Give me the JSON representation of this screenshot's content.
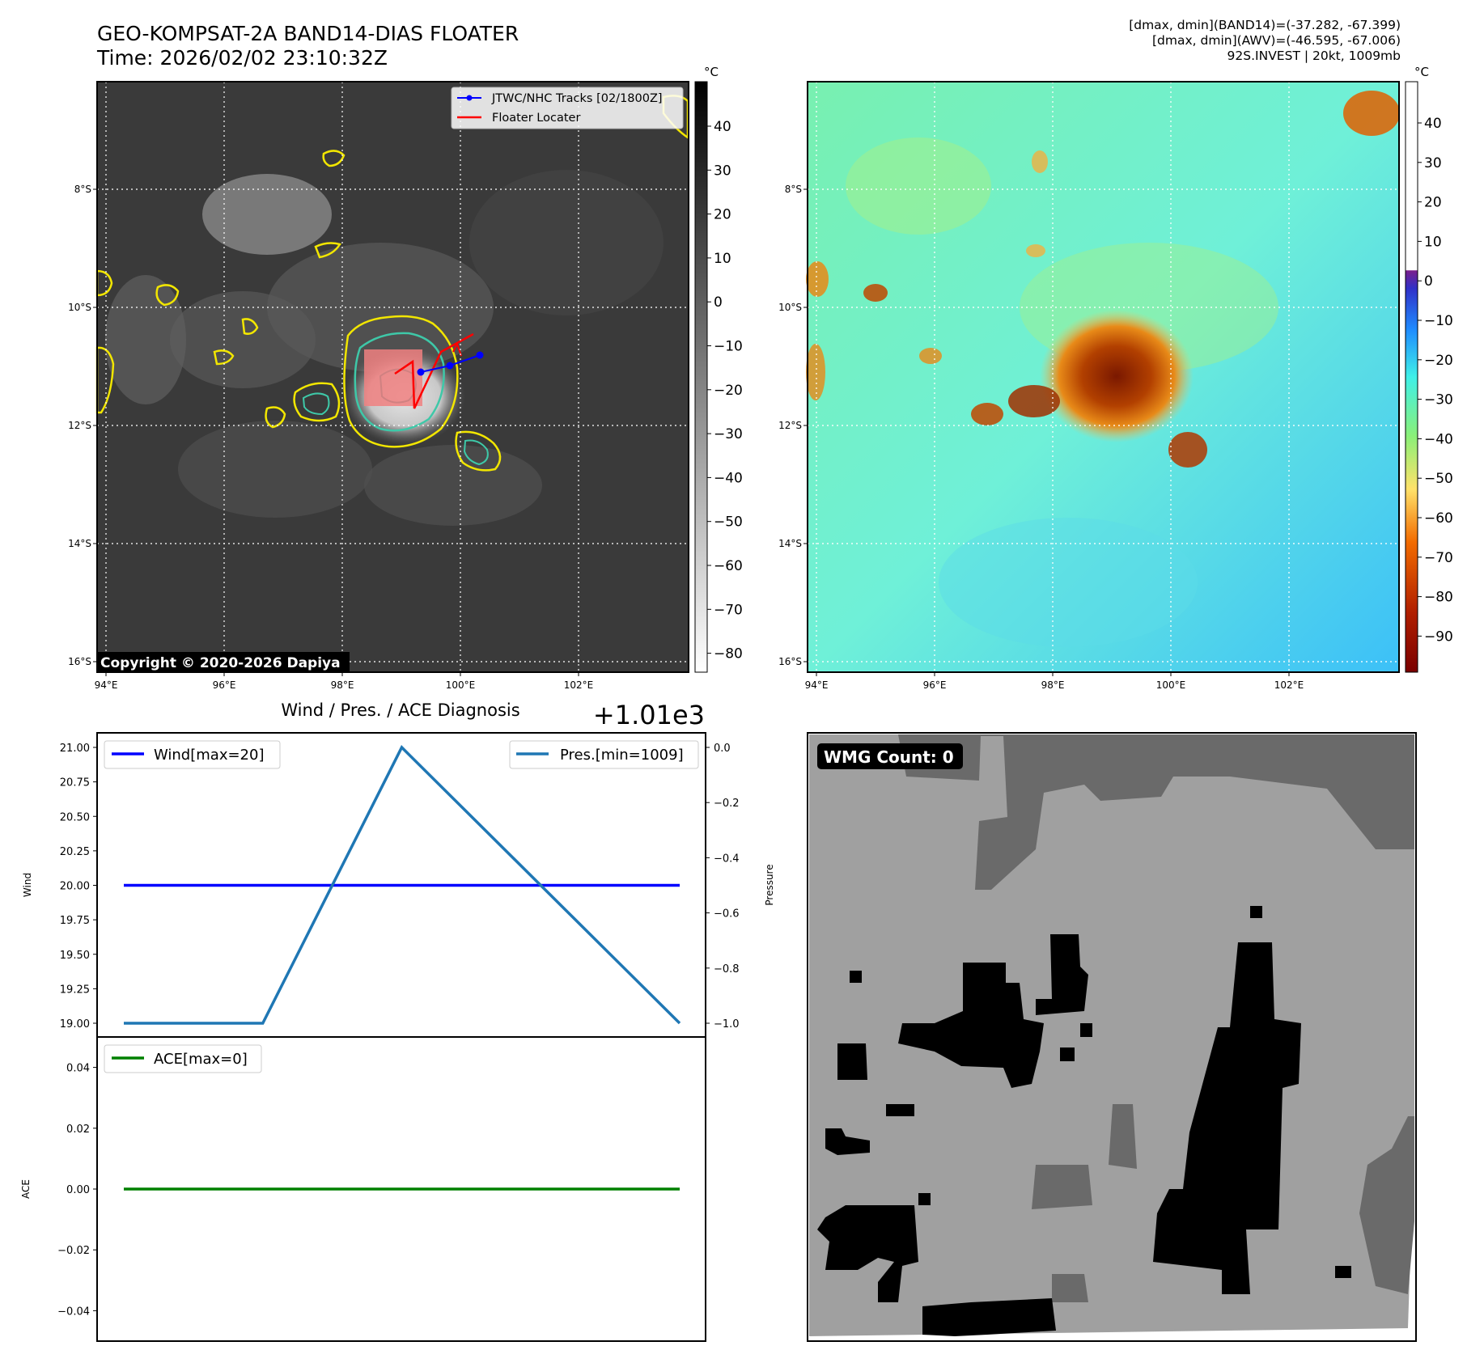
{
  "header": {
    "title_line1": "GEO-KOMPSAT-2A BAND14-DIAS FLOATER",
    "title_line2": "Time: 2026/02/02 23:10:32Z",
    "info_line1": "[dmax, dmin](BAND14)=(-37.282, -67.399)",
    "info_line2": "[dmax, dmin](AWV)=(-46.595, -67.006)",
    "info_line3": "92S.INVEST | 20kt, 1009mb"
  },
  "map_axes": {
    "lon_ticks": [
      "94°E",
      "96°E",
      "98°E",
      "100°E",
      "102°E"
    ],
    "lat_ticks": [
      "8°S",
      "10°S",
      "12°S",
      "14°S",
      "16°S"
    ]
  },
  "ir_panel": {
    "legend_track": "JTWC/NHC Tracks [02/1800Z]",
    "legend_floater": "Floater Locater",
    "copyright": "Copyright © 2020-2026 Dapiya",
    "track_color": "#0000ff",
    "floater_color": "#ff0000",
    "colorbar_unit": "°C",
    "colorbar_ticks": [
      "40",
      "30",
      "20",
      "10",
      "0",
      "−10",
      "−20",
      "−30",
      "−40",
      "−50",
      "−60",
      "−70",
      "−80"
    ]
  },
  "wv_panel": {
    "colorbar_unit": "°C",
    "colorbar_ticks": [
      "40",
      "30",
      "20",
      "10",
      "0",
      "−10",
      "−20",
      "−30",
      "−40",
      "−50",
      "−60",
      "−70",
      "−80",
      "−90"
    ]
  },
  "diag_panel": {
    "title": "Wind / Pres. / ACE Diagnosis",
    "offset_text": "+1.01e3",
    "wind_legend": "Wind[max=20]",
    "pres_legend": "Pres.[min=1009]",
    "ace_legend": "ACE[max=0]",
    "wind_ylabel": "Wind",
    "pres_ylabel": "Pressure",
    "ace_ylabel": "ACE",
    "wind_color": "#0000ff",
    "pres_color": "#1f77b4",
    "ace_color": "#008000"
  },
  "wmg_panel": {
    "label": "WMG Count: 0"
  },
  "chart_data": [
    {
      "type": "line",
      "ylabel": "Wind",
      "ylim": [
        19.0,
        21.0
      ],
      "y_ticks": [
        19.0,
        19.25,
        19.5,
        19.75,
        20.0,
        20.25,
        20.5,
        20.75,
        21.0
      ],
      "y_tick_labels": [
        "19.00",
        "19.25",
        "19.50",
        "19.75",
        "20.00",
        "20.25",
        "20.50",
        "20.75",
        "21.00"
      ],
      "series": [
        {
          "name": "Wind[max=20]",
          "values": [
            20,
            20,
            20,
            20,
            20
          ]
        }
      ]
    },
    {
      "type": "line",
      "ylabel": "Pressure",
      "offset": "+1.01e3",
      "ylim": [
        -1.0,
        0.0
      ],
      "y_ticks": [
        -1.0,
        -0.8,
        -0.6,
        -0.4,
        -0.2,
        0.0
      ],
      "y_tick_labels": [
        "−1.0",
        "−0.8",
        "−0.6",
        "−0.4",
        "−0.2",
        "0.0"
      ],
      "series": [
        {
          "name": "Pres.[min=1009]",
          "values": [
            -1.0,
            -1.0,
            0.0,
            -0.5,
            -1.0
          ]
        }
      ]
    },
    {
      "type": "line",
      "ylabel": "ACE",
      "ylim": [
        -0.05,
        0.05
      ],
      "y_ticks": [
        -0.04,
        -0.02,
        0.0,
        0.02,
        0.04
      ],
      "y_tick_labels": [
        "−0.04",
        "−0.02",
        "0.00",
        "0.02",
        "0.04"
      ],
      "series": [
        {
          "name": "ACE[max=0]",
          "values": [
            0,
            0,
            0,
            0,
            0
          ]
        }
      ]
    }
  ]
}
